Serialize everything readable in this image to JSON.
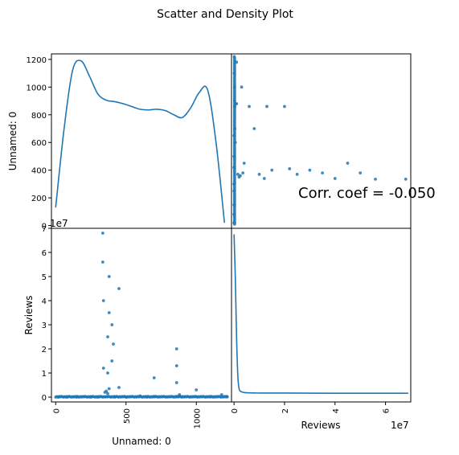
{
  "chart_data": {
    "type": "scatter",
    "title": "Scatter and Density Plot",
    "variables": [
      "Unnamed: 0",
      "Reviews"
    ],
    "corr_annotation": "Corr. coef = -0.050",
    "offset_label": "1e7",
    "axes": {
      "unnamed_ticks": [
        "0",
        "200",
        "400",
        "600",
        "800",
        "1000",
        "1200"
      ],
      "unnamed_x_ticks": [
        "0",
        "500",
        "1000"
      ],
      "reviews_y_ticks": [
        "0",
        "1",
        "2",
        "3",
        "4",
        "5",
        "6",
        "7"
      ],
      "reviews_x_ticks": [
        "0",
        "2",
        "4",
        "6"
      ],
      "unnamed_range": [
        -20,
        1240
      ],
      "unnamed_x_range": [
        -30,
        1250
      ],
      "reviews_y_range": [
        -0.2,
        7.0
      ],
      "reviews_x_range": [
        -0.1,
        7.0
      ]
    },
    "density_unnamed": {
      "x": [
        0,
        60,
        120,
        180,
        240,
        300,
        360,
        420,
        480,
        540,
        600,
        660,
        720,
        780,
        840,
        900,
        960,
        1020,
        1080,
        1140,
        1200
      ],
      "y": [
        130,
        700,
        1120,
        1190,
        1080,
        950,
        905,
        895,
        880,
        860,
        840,
        835,
        840,
        830,
        800,
        780,
        850,
        960,
        980,
        600,
        20
      ]
    },
    "density_reviews": {
      "x": [
        0.0,
        0.05,
        0.1,
        0.15,
        0.2,
        0.3,
        0.5,
        1.0,
        2.0,
        4.0,
        6.9
      ],
      "y": [
        6.75,
        5.0,
        2.5,
        0.9,
        0.35,
        0.22,
        0.18,
        0.17,
        0.17,
        0.16,
        0.16
      ]
    },
    "scatter_unnamed_vs_reviews": {
      "reviews": [
        0.0,
        0.0,
        0.0,
        0.0,
        0.0,
        0.0,
        0.0,
        0.0,
        0.01,
        0.01,
        0.02,
        0.02,
        0.03,
        0.03,
        0.05,
        0.05,
        0.1,
        0.1,
        0.15,
        0.2,
        0.25,
        0.3,
        0.35,
        0.4,
        0.6,
        0.8,
        1.0,
        1.2,
        1.3,
        1.5,
        2.0,
        2.2,
        2.5,
        3.0,
        3.5,
        4.0,
        4.5,
        5.0,
        5.6,
        6.8
      ],
      "unnamed": [
        20,
        80,
        150,
        250,
        300,
        420,
        500,
        650,
        1220,
        1100,
        1000,
        900,
        860,
        700,
        600,
        880,
        880,
        1180,
        370,
        350,
        360,
        1000,
        380,
        450,
        860,
        700,
        370,
        340,
        860,
        400,
        860,
        410,
        370,
        400,
        380,
        340,
        450,
        380,
        335,
        335
      ]
    },
    "scatter_series_name": "",
    "colors": {
      "series": "#1f77b4",
      "frame": "#000000"
    }
  }
}
